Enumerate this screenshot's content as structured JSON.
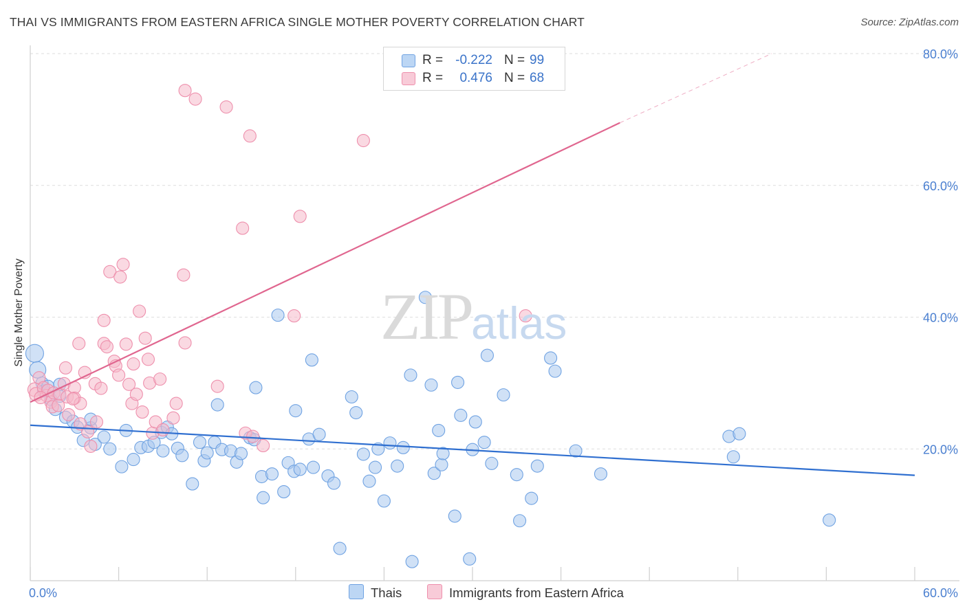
{
  "title": "THAI VS IMMIGRANTS FROM EASTERN AFRICA SINGLE MOTHER POVERTY CORRELATION CHART",
  "source": "Source: ZipAtlas.com",
  "watermark": {
    "zip": "ZIP",
    "atlas": "atlas"
  },
  "stats": [
    {
      "r_label": "R =",
      "r_value": "-0.222",
      "n_label": "N =",
      "n_value": "99",
      "color": "#a9c8ef"
    },
    {
      "r_label": "R =",
      "r_value": "0.476",
      "n_label": "N =",
      "n_value": "68",
      "color": "#f6b9cb"
    }
  ],
  "legend": [
    {
      "label": "Thais",
      "color": "#a9c8ef"
    },
    {
      "label": "Immigrants from Eastern Africa",
      "color": "#f6b9cb"
    }
  ],
  "chart_data": {
    "type": "scatter",
    "title": "THAI VS IMMIGRANTS FROM EASTERN AFRICA SINGLE MOTHER POVERTY CORRELATION CHART",
    "xlabel": "",
    "ylabel": "Single Mother Poverty",
    "xlim": [
      0,
      60
    ],
    "ylim": [
      0,
      80
    ],
    "x_tick_labels": [
      "0.0%",
      "60.0%"
    ],
    "y_ticks": [
      {
        "value": 20,
        "label": "20.0%"
      },
      {
        "value": 40,
        "label": "40.0%"
      },
      {
        "value": 60,
        "label": "60.0%"
      },
      {
        "value": 80,
        "label": "80.0%"
      }
    ],
    "grid": true,
    "legend_position": "bottom",
    "series": [
      {
        "name": "Thais",
        "color": "#6fa2e2",
        "fill": "#a9c8ef",
        "trend": {
          "x0": 0,
          "y0": 23.6,
          "x1": 60,
          "y1": 16.0,
          "color": "#2f6fd0"
        },
        "points": [
          [
            0.3,
            34.5,
            13
          ],
          [
            0.5,
            32.0,
            12
          ],
          [
            0.8,
            30.0,
            9
          ],
          [
            0.9,
            28.8,
            9
          ],
          [
            1.2,
            29.5,
            9
          ],
          [
            1.4,
            27.5,
            9
          ],
          [
            1.7,
            26.0,
            9
          ],
          [
            2.0,
            28.0,
            9
          ],
          [
            2.4,
            24.8,
            9
          ],
          [
            2.9,
            24.2,
            9
          ],
          [
            3.2,
            23.3,
            9
          ],
          [
            3.6,
            21.3,
            9
          ],
          [
            4.1,
            23.2,
            9
          ],
          [
            4.4,
            20.7,
            9
          ],
          [
            5.0,
            21.8,
            9
          ],
          [
            5.4,
            20.0,
            9
          ],
          [
            6.2,
            17.3,
            9
          ],
          [
            6.5,
            22.8,
            9
          ],
          [
            7.0,
            18.4,
            9
          ],
          [
            7.5,
            20.2,
            9
          ],
          [
            8.0,
            20.4,
            9
          ],
          [
            8.4,
            21.0,
            9
          ],
          [
            8.9,
            22.5,
            9
          ],
          [
            9.0,
            19.7,
            9
          ],
          [
            9.3,
            23.3,
            9
          ],
          [
            9.6,
            22.3,
            9
          ],
          [
            10.0,
            20.1,
            9
          ],
          [
            10.3,
            19.0,
            9
          ],
          [
            11.0,
            14.7,
            9
          ],
          [
            11.5,
            21.0,
            9
          ],
          [
            11.8,
            18.2,
            9
          ],
          [
            12.0,
            19.4,
            9
          ],
          [
            12.5,
            21.0,
            9
          ],
          [
            12.7,
            26.7,
            9
          ],
          [
            13.0,
            19.9,
            9
          ],
          [
            13.6,
            19.7,
            9
          ],
          [
            14.0,
            18.0,
            9
          ],
          [
            14.3,
            19.3,
            9
          ],
          [
            14.9,
            21.7,
            9
          ],
          [
            15.2,
            21.4,
            9
          ],
          [
            15.7,
            15.8,
            9
          ],
          [
            15.3,
            29.3,
            9
          ],
          [
            15.8,
            12.6,
            9
          ],
          [
            16.4,
            16.2,
            9
          ],
          [
            16.8,
            40.3,
            9
          ],
          [
            17.2,
            13.5,
            9
          ],
          [
            17.5,
            17.9,
            9
          ],
          [
            17.9,
            16.6,
            9
          ],
          [
            18.0,
            25.8,
            9
          ],
          [
            18.3,
            16.9,
            9
          ],
          [
            18.9,
            21.5,
            9
          ],
          [
            19.2,
            17.2,
            9
          ],
          [
            19.1,
            33.5,
            9
          ],
          [
            19.6,
            22.2,
            9
          ],
          [
            20.2,
            15.9,
            9
          ],
          [
            20.6,
            14.8,
            9
          ],
          [
            21.0,
            4.9,
            9
          ],
          [
            21.8,
            27.9,
            9
          ],
          [
            22.1,
            25.5,
            9
          ],
          [
            22.6,
            19.2,
            9
          ],
          [
            23.0,
            15.1,
            9
          ],
          [
            23.4,
            17.2,
            9
          ],
          [
            23.6,
            20.0,
            9
          ],
          [
            24.0,
            12.1,
            9
          ],
          [
            24.4,
            20.9,
            9
          ],
          [
            24.9,
            17.4,
            9
          ],
          [
            25.3,
            20.2,
            9
          ],
          [
            25.8,
            31.2,
            9
          ],
          [
            25.9,
            2.9,
            9
          ],
          [
            26.8,
            43.0,
            9
          ],
          [
            27.2,
            29.7,
            9
          ],
          [
            27.4,
            16.3,
            9
          ],
          [
            27.7,
            22.8,
            9
          ],
          [
            27.9,
            17.6,
            9
          ],
          [
            28.0,
            19.3,
            9
          ],
          [
            28.8,
            9.8,
            9
          ],
          [
            29.0,
            30.1,
            9
          ],
          [
            29.2,
            25.1,
            9
          ],
          [
            29.8,
            3.3,
            9
          ],
          [
            30.0,
            19.9,
            9
          ],
          [
            30.2,
            24.1,
            9
          ],
          [
            30.8,
            21.0,
            9
          ],
          [
            31.0,
            34.2,
            9
          ],
          [
            31.3,
            17.8,
            9
          ],
          [
            32.1,
            28.2,
            9
          ],
          [
            33.0,
            16.1,
            9
          ],
          [
            33.2,
            9.1,
            9
          ],
          [
            34.0,
            12.5,
            9
          ],
          [
            34.4,
            17.4,
            9
          ],
          [
            35.3,
            33.8,
            9
          ],
          [
            35.6,
            31.8,
            9
          ],
          [
            37.0,
            19.7,
            9
          ],
          [
            38.7,
            16.2,
            9
          ],
          [
            47.4,
            21.9,
            9
          ],
          [
            47.7,
            18.8,
            9
          ],
          [
            48.1,
            22.3,
            9
          ],
          [
            54.2,
            9.2,
            9
          ],
          [
            2.0,
            29.8,
            9
          ],
          [
            4.1,
            24.5,
            9
          ]
        ]
      },
      {
        "name": "Immigrants from Eastern Africa",
        "color": "#ee8fac",
        "fill": "#f6b9cb",
        "trend": {
          "x0": 0,
          "y0": 27.1,
          "x1": 40,
          "y1": 69.5,
          "dash_x1": 50.3,
          "dash_y1": 80.0,
          "color": "#e0668f"
        },
        "points": [
          [
            0.3,
            29.0,
            10
          ],
          [
            0.4,
            28.3,
            10
          ],
          [
            0.6,
            30.8,
            9
          ],
          [
            0.9,
            29.3,
            9
          ],
          [
            1.1,
            28.1,
            9
          ],
          [
            1.2,
            28.9,
            9
          ],
          [
            1.4,
            27.1,
            9
          ],
          [
            1.5,
            26.4,
            9
          ],
          [
            1.6,
            28.5,
            9
          ],
          [
            2.0,
            28.3,
            9
          ],
          [
            2.3,
            29.9,
            9
          ],
          [
            2.4,
            32.3,
            9
          ],
          [
            2.5,
            27.9,
            9
          ],
          [
            2.6,
            25.2,
            9
          ],
          [
            3.0,
            29.3,
            9
          ],
          [
            3.0,
            27.7,
            9
          ],
          [
            3.4,
            26.9,
            9
          ],
          [
            3.4,
            23.8,
            9
          ],
          [
            3.7,
            31.6,
            9
          ],
          [
            3.9,
            22.6,
            9
          ],
          [
            4.1,
            20.4,
            9
          ],
          [
            4.4,
            29.9,
            9
          ],
          [
            4.5,
            24.1,
            9
          ],
          [
            4.8,
            29.2,
            9
          ],
          [
            5.0,
            36.0,
            9
          ],
          [
            5.0,
            39.5,
            9
          ],
          [
            5.2,
            35.5,
            9
          ],
          [
            5.4,
            46.9,
            9
          ],
          [
            5.7,
            33.3,
            9
          ],
          [
            5.8,
            32.6,
            9
          ],
          [
            6.0,
            31.2,
            9
          ],
          [
            6.1,
            46.1,
            9
          ],
          [
            6.3,
            48.0,
            9
          ],
          [
            6.5,
            35.9,
            9
          ],
          [
            6.7,
            29.8,
            9
          ],
          [
            6.9,
            26.9,
            9
          ],
          [
            7.0,
            32.9,
            9
          ],
          [
            7.2,
            28.3,
            9
          ],
          [
            7.4,
            40.9,
            9
          ],
          [
            7.6,
            25.6,
            9
          ],
          [
            7.8,
            36.8,
            9
          ],
          [
            8.0,
            33.6,
            9
          ],
          [
            8.1,
            30.0,
            9
          ],
          [
            8.3,
            22.4,
            9
          ],
          [
            8.5,
            24.1,
            9
          ],
          [
            8.8,
            30.6,
            9
          ],
          [
            9.0,
            22.9,
            9
          ],
          [
            9.7,
            24.7,
            9
          ],
          [
            9.9,
            26.9,
            9
          ],
          [
            10.4,
            46.4,
            9
          ],
          [
            10.5,
            36.1,
            9
          ],
          [
            10.5,
            74.4,
            9
          ],
          [
            11.2,
            73.1,
            9
          ],
          [
            12.7,
            29.5,
            9
          ],
          [
            13.3,
            71.9,
            9
          ],
          [
            14.4,
            53.5,
            9
          ],
          [
            14.6,
            22.4,
            9
          ],
          [
            15.1,
            21.9,
            9
          ],
          [
            14.9,
            67.5,
            9
          ],
          [
            15.8,
            20.5,
            9
          ],
          [
            17.9,
            40.2,
            9
          ],
          [
            18.3,
            55.3,
            9
          ],
          [
            22.6,
            66.8,
            9
          ],
          [
            33.6,
            40.2,
            9
          ],
          [
            3.3,
            36.0,
            9
          ],
          [
            2.9,
            27.6,
            9
          ],
          [
            1.9,
            26.6,
            9
          ],
          [
            0.7,
            27.8,
            9
          ]
        ]
      }
    ]
  }
}
